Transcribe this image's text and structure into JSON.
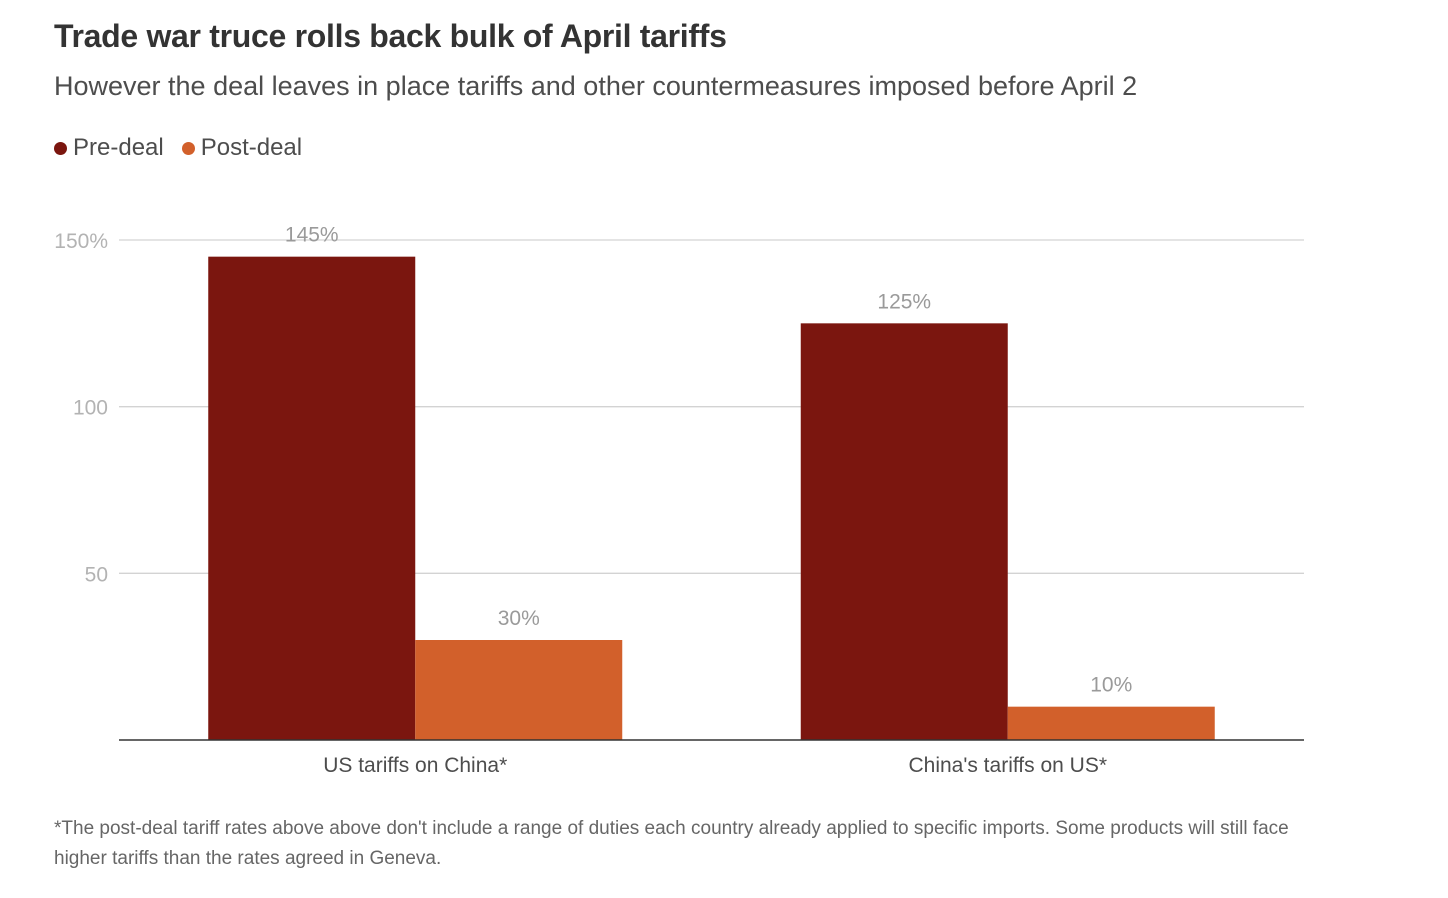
{
  "header": {
    "title": "Trade war truce rolls back bulk of April tariffs",
    "subtitle": "However the deal leaves in place tariffs and other countermeasures imposed before April 2"
  },
  "legend": [
    {
      "label": "Pre-deal",
      "color": "#7b160f"
    },
    {
      "label": "Post-deal",
      "color": "#d2602b"
    }
  ],
  "chart_data": {
    "type": "bar",
    "title": "Trade war truce rolls back bulk of April tariffs",
    "categories": [
      "US tariffs on China*",
      "China's tariffs on US*"
    ],
    "series": [
      {
        "name": "Pre-deal",
        "color": "#7b160f",
        "values": [
          145,
          125
        ],
        "labels": [
          "145%",
          "125%"
        ]
      },
      {
        "name": "Post-deal",
        "color": "#d2602b",
        "values": [
          30,
          10
        ],
        "labels": [
          "30%",
          "10%"
        ]
      }
    ],
    "yticks": [
      {
        "value": 50,
        "label": "50"
      },
      {
        "value": 100,
        "label": "100"
      },
      {
        "value": 150,
        "label": "150%"
      }
    ],
    "ylim": [
      0,
      150
    ],
    "xlabel": "",
    "ylabel": "",
    "grid": true,
    "legend_position": "top-left"
  },
  "footnote": "*The post-deal tariff rates above above don't include a range of duties each country already applied to specific imports. Some products will still face higher tariffs than the rates agreed in Geneva."
}
